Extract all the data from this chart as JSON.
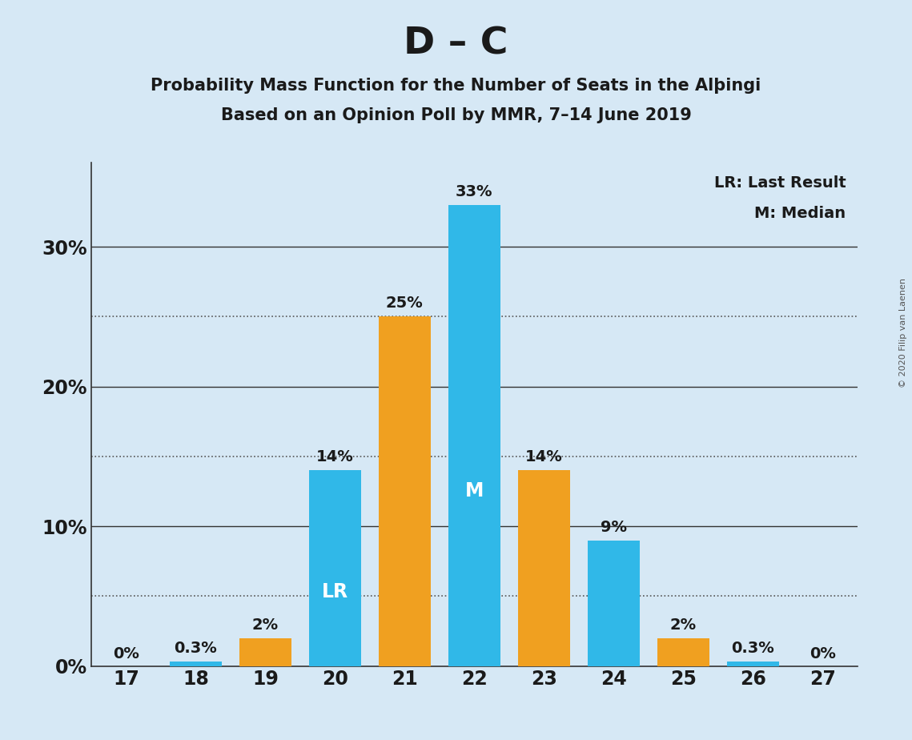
{
  "title": "D – C",
  "subtitle1": "Probability Mass Function for the Number of Seats in the Alþingi",
  "subtitle2": "Based on an Opinion Poll by MMR, 7–14 June 2019",
  "copyright": "© 2020 Filip van Laenen",
  "seats": [
    17,
    18,
    19,
    20,
    21,
    22,
    23,
    24,
    25,
    26,
    27
  ],
  "blue_values": [
    0.0,
    0.3,
    0.0,
    14.0,
    0.0,
    33.0,
    0.0,
    9.0,
    0.0,
    0.3,
    0.0
  ],
  "orange_values": [
    0.0,
    0.0,
    2.0,
    0.0,
    25.0,
    0.0,
    14.0,
    0.0,
    2.0,
    0.0,
    0.0
  ],
  "blue_labels": [
    "0%",
    "0.3%",
    null,
    "14%",
    null,
    "33%",
    null,
    "9%",
    null,
    "0.3%",
    "0%"
  ],
  "orange_labels": [
    null,
    null,
    "2%",
    null,
    "25%",
    null,
    "14%",
    null,
    "2%",
    null,
    null
  ],
  "blue_color": "#30B8E8",
  "orange_color": "#F0A020",
  "background_color": "#D6E8F5",
  "yticks_labeled": [
    0,
    10,
    20,
    30
  ],
  "yticks_dotted": [
    5,
    15,
    25
  ],
  "yticks_solid": [
    0,
    10,
    20,
    30
  ],
  "ylim": [
    0,
    36
  ],
  "lr_seat": 20,
  "median_seat": 22,
  "bar_width": 0.75,
  "title_fontsize": 34,
  "subtitle_fontsize": 15,
  "label_fontsize": 14,
  "ytick_fontsize": 17,
  "xtick_fontsize": 17,
  "legend_fontsize": 14,
  "legend_text1": "LR: Last Result",
  "legend_text2": "M: Median"
}
